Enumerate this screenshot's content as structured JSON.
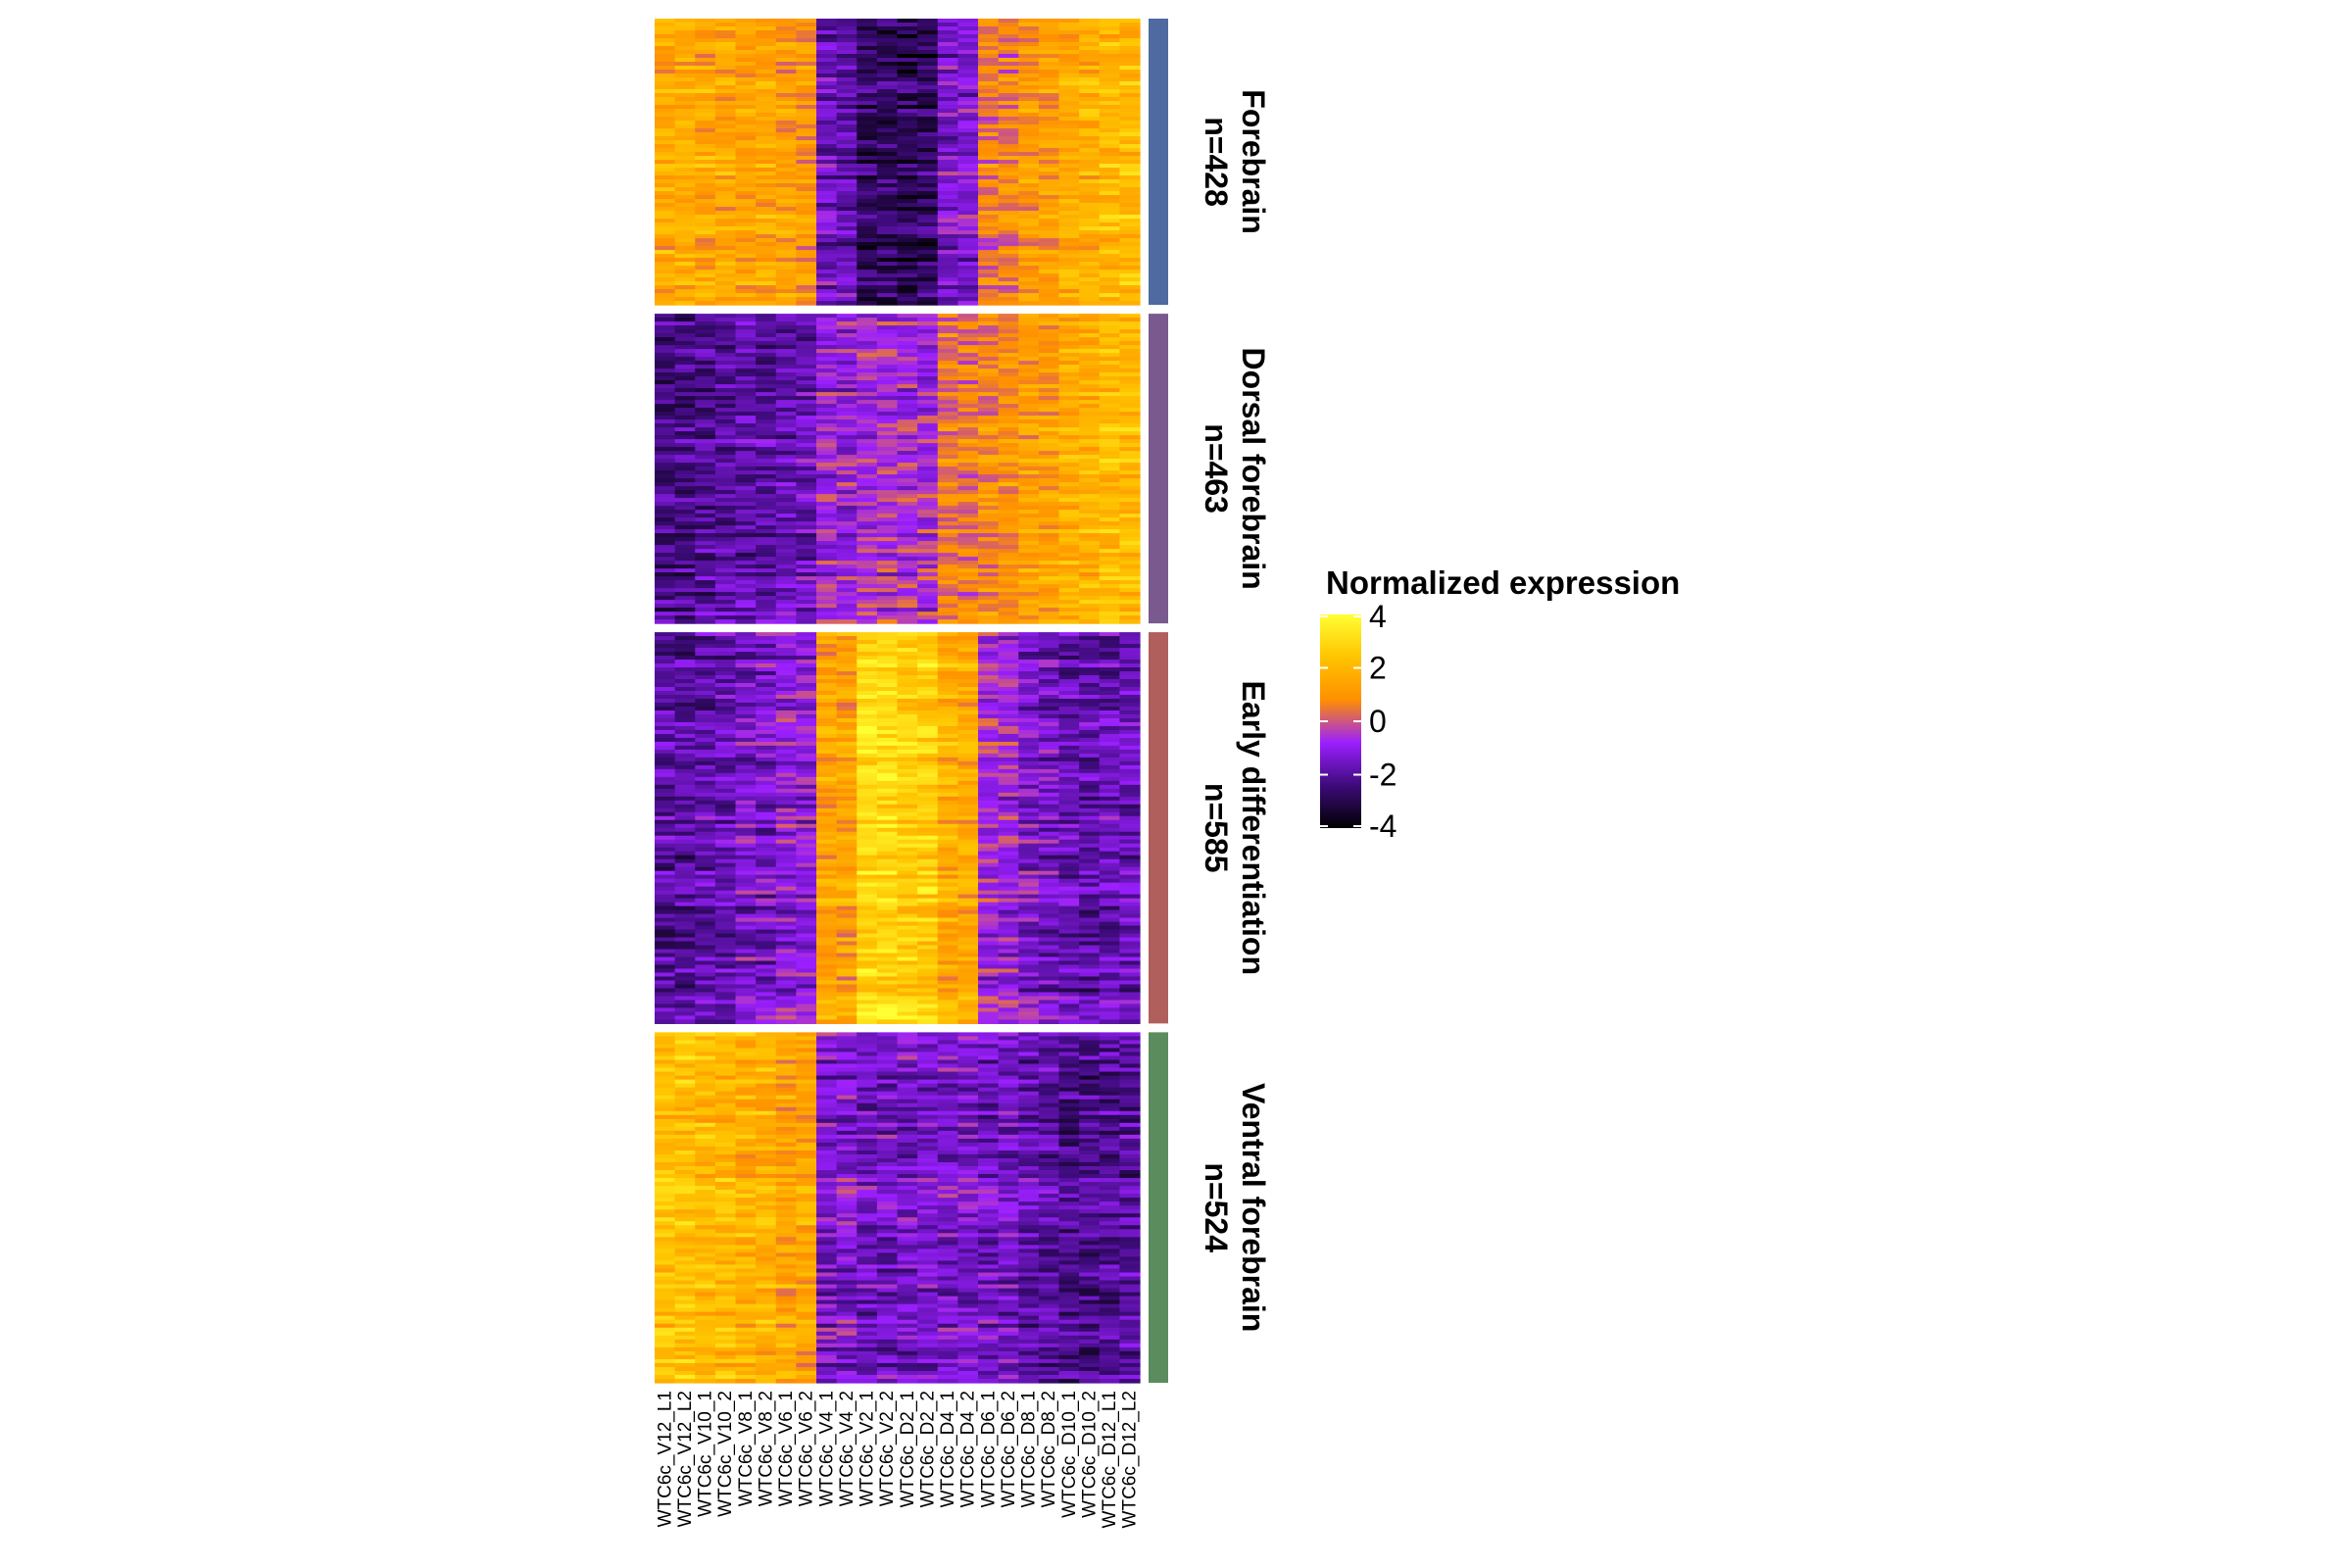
{
  "chart_data": {
    "type": "heatmap",
    "title": "",
    "xlabel": "",
    "ylabel": "",
    "columns": [
      "WTC6c_V12_L1",
      "WTC6c_V12_L2",
      "WTC6c_V10_1",
      "WTC6c_V10_2",
      "WTC6c_V8_1",
      "WTC6c_V8_2",
      "WTC6c_V6_1",
      "WTC6c_V6_2",
      "WTC6c_V4_1",
      "WTC6c_V4_2",
      "WTC6c_V2_1",
      "WTC6c_V2_2",
      "WTC6c_D2_1",
      "WTC6c_D2_2",
      "WTC6c_D4_1",
      "WTC6c_D4_2",
      "WTC6c_D6_1",
      "WTC6c_D6_2",
      "WTC6c_D8_1",
      "WTC6c_D8_2",
      "WTC6c_D10_1",
      "WTC6c_D10_2",
      "WTC6c_D12_L1",
      "WTC6c_D12_L2"
    ],
    "clusters": [
      {
        "name": "Forebrain",
        "count_label": "n=428",
        "n": 428,
        "color": "#4E6AA1",
        "column_means": [
          1.6,
          1.6,
          1.5,
          1.5,
          1.4,
          1.4,
          1.2,
          1.1,
          -1.6,
          -1.7,
          -2.8,
          -2.8,
          -2.9,
          -2.8,
          -1.3,
          -1.3,
          0.5,
          0.6,
          1.2,
          1.3,
          1.7,
          1.8,
          2.0,
          2.1
        ]
      },
      {
        "name": "Dorsal forebrain",
        "count_label": "n=463",
        "n": 463,
        "color": "#7A5A8E",
        "column_means": [
          -2.3,
          -2.2,
          -2.0,
          -2.0,
          -1.8,
          -1.8,
          -1.6,
          -1.6,
          -0.8,
          -0.8,
          -0.5,
          -0.5,
          -0.6,
          -0.6,
          0.6,
          0.6,
          0.9,
          0.9,
          1.4,
          1.4,
          1.8,
          1.9,
          2.2,
          2.2
        ]
      },
      {
        "name": "Early differentiation",
        "count_label": "n=585",
        "n": 585,
        "color": "#B05F5D",
        "column_means": [
          -2.0,
          -2.0,
          -1.8,
          -1.8,
          -1.4,
          -1.4,
          -1.0,
          -1.0,
          1.4,
          1.4,
          3.0,
          3.0,
          2.7,
          2.7,
          1.7,
          1.6,
          -0.7,
          -0.8,
          -1.3,
          -1.4,
          -1.8,
          -1.9,
          -1.7,
          -1.7
        ]
      },
      {
        "name": "Ventral forebrain",
        "count_label": "n=524",
        "n": 524,
        "color": "#5A8C5E",
        "column_means": [
          2.3,
          2.3,
          2.1,
          2.1,
          1.8,
          1.8,
          1.5,
          1.5,
          -1.2,
          -1.2,
          -1.5,
          -1.5,
          -1.4,
          -1.4,
          -1.3,
          -1.3,
          -1.5,
          -1.5,
          -1.8,
          -1.8,
          -2.2,
          -2.2,
          -2.0,
          -2.0
        ]
      }
    ],
    "legend": {
      "title": "Normalized expression",
      "ticks": [
        "4",
        "2",
        "0",
        "-2",
        "-4"
      ],
      "range": [
        -4,
        4
      ],
      "colors": [
        "#000000",
        "#3D0B7A",
        "#9B1FFF",
        "#FF8F00",
        "#FFC400",
        "#FFFF33"
      ],
      "placement": "right"
    }
  }
}
